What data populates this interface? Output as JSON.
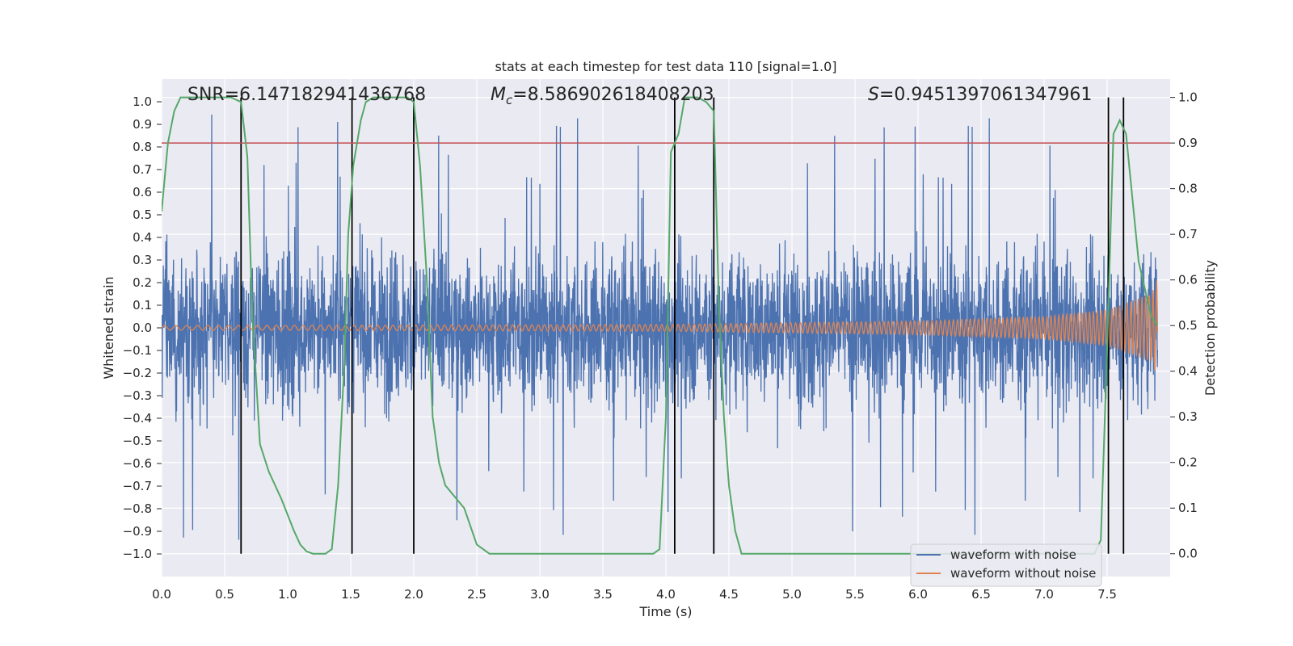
{
  "chart_data": {
    "type": "line",
    "title": "stats at each timestep for test data 110 [signal=1.0]",
    "xlabel": "Time (s)",
    "ylabel": "Whitened strain",
    "y2label": "Detection probability",
    "xlim": [
      0.0,
      8.0
    ],
    "ylim": [
      -1.1,
      1.1
    ],
    "y2lim": [
      -0.05,
      1.04
    ],
    "grid": true,
    "x_ticks": [
      "0.0",
      "0.5",
      "1.0",
      "1.5",
      "2.0",
      "2.5",
      "3.0",
      "3.5",
      "4.0",
      "4.5",
      "5.0",
      "5.5",
      "6.0",
      "6.5",
      "7.0",
      "7.5"
    ],
    "y_ticks": [
      "1.0",
      "0.9",
      "0.8",
      "0.7",
      "0.6",
      "0.5",
      "0.4",
      "0.3",
      "0.2",
      "0.1",
      "0.0",
      "−0.1",
      "−0.2",
      "−0.3",
      "−0.4",
      "−0.5",
      "−0.6",
      "−0.7",
      "−0.8",
      "−0.9",
      "−1.0"
    ],
    "y2_ticks": [
      "1.0",
      "0.9",
      "0.8",
      "0.7",
      "0.6",
      "0.5",
      "0.4",
      "0.3",
      "0.2",
      "0.1",
      "0.0"
    ],
    "annotations": {
      "snr": "SNR=6.147182941436768",
      "mc_symbol": "M",
      "mc_sub": "c",
      "mc_value": "=8.586902618408203",
      "s_symbol": "S",
      "s_value": "=0.9451397061347961"
    },
    "threshold": {
      "name": "detection threshold",
      "y2": 0.9,
      "color": "#c44e52"
    },
    "vertical_markers_x": [
      0.63,
      1.51,
      2.0,
      4.07,
      4.38,
      7.51,
      7.63
    ],
    "series": [
      {
        "name": "waveform with noise",
        "color": "#4c72b0",
        "typical_amplitude": 0.4,
        "max_peak": 1.0,
        "min_peak": -1.0
      },
      {
        "name": "waveform without noise",
        "color": "#dd8452",
        "envelope_t": [
          0.0,
          4.0,
          6.0,
          7.0,
          7.5,
          7.85,
          7.9
        ],
        "envelope_amp": [
          0.01,
          0.015,
          0.03,
          0.05,
          0.08,
          0.15,
          0.22
        ]
      },
      {
        "name": "detection probability",
        "color": "#55a868",
        "axis": "right",
        "x": [
          0.0,
          0.05,
          0.1,
          0.15,
          0.3,
          0.45,
          0.55,
          0.63,
          0.68,
          0.72,
          0.78,
          0.85,
          0.95,
          1.05,
          1.1,
          1.15,
          1.2,
          1.3,
          1.35,
          1.4,
          1.45,
          1.48,
          1.52,
          1.58,
          1.62,
          1.68,
          1.8,
          1.95,
          2.0,
          2.05,
          2.1,
          2.15,
          2.2,
          2.25,
          2.4,
          2.5,
          2.6,
          2.8,
          3.5,
          3.9,
          3.95,
          4.0,
          4.04,
          4.1,
          4.15,
          4.25,
          4.32,
          4.38,
          4.42,
          4.46,
          4.5,
          4.55,
          4.6,
          4.7,
          5.0,
          6.0,
          7.0,
          7.4,
          7.45,
          7.5,
          7.55,
          7.6,
          7.65,
          7.7,
          7.75,
          7.8,
          7.85,
          7.9
        ],
        "values": [
          0.75,
          0.9,
          0.97,
          1.0,
          1.0,
          1.0,
          1.0,
          0.99,
          0.87,
          0.52,
          0.24,
          0.18,
          0.12,
          0.05,
          0.02,
          0.005,
          0.0,
          0.0,
          0.01,
          0.15,
          0.42,
          0.7,
          0.85,
          0.95,
          0.99,
          1.0,
          1.0,
          1.0,
          0.99,
          0.85,
          0.62,
          0.3,
          0.2,
          0.15,
          0.1,
          0.02,
          0.0,
          0.0,
          0.0,
          0.0,
          0.01,
          0.3,
          0.88,
          0.92,
          1.0,
          1.0,
          0.99,
          0.97,
          0.55,
          0.3,
          0.15,
          0.05,
          0.0,
          0.0,
          0.0,
          0.0,
          0.0,
          0.0,
          0.03,
          0.45,
          0.92,
          0.95,
          0.92,
          0.78,
          0.64,
          0.58,
          0.52,
          0.5
        ]
      }
    ]
  }
}
